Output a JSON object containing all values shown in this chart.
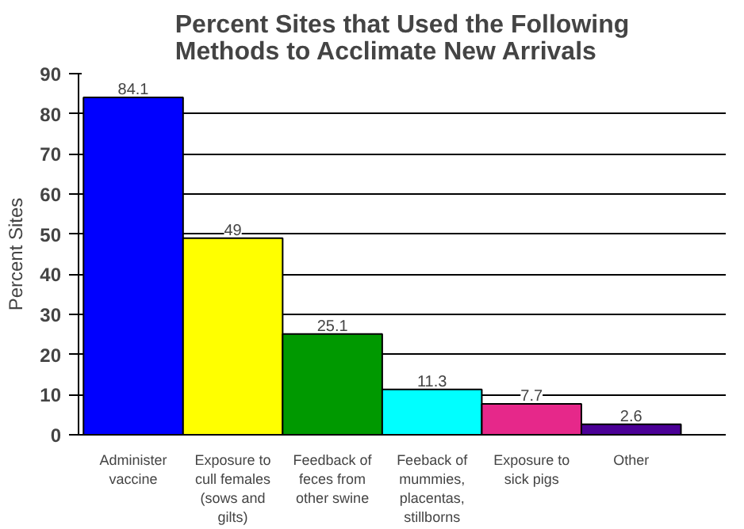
{
  "chart_data": {
    "type": "bar",
    "title": "Percent Sites that Used the Following\nMethods to Acclimate New Arrivals",
    "ylabel": "Percent Sites",
    "categories": [
      "Administer vaccine",
      "Exposure to cull females (sows and gilts)",
      "Feedback of feces from other swine",
      "Feeback of mummies, placentas, stillborns",
      "Exposure to sick pigs",
      "Other"
    ],
    "values": [
      84.1,
      49,
      25.1,
      11.3,
      7.7,
      2.6
    ],
    "colors": [
      "#0000ff",
      "#ffff00",
      "#009900",
      "#00ffff",
      "#e6288a",
      "#4b0096"
    ],
    "ylim": [
      0,
      90
    ],
    "yticks": [
      0,
      10,
      20,
      30,
      40,
      50,
      60,
      70,
      80,
      90
    ],
    "grid": "y",
    "data_labels": true
  }
}
